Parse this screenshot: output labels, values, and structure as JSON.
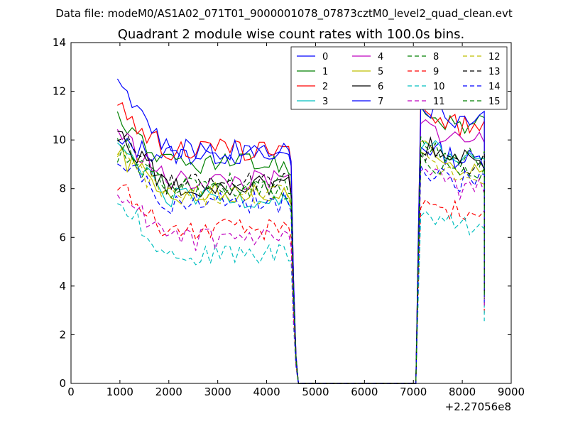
{
  "chart_data": {
    "type": "line",
    "suptitle": "Data file: modeM0/AS1A02_071T01_9000001078_07873cztM0_level2_quad_clean.evt",
    "title": "Quadrant 2 module wise count rates with 100.0s bins.",
    "xlabel": "",
    "ylabel": "",
    "offset_label": "+2.27056e8",
    "xlim": [
      0,
      9000
    ],
    "ylim": [
      0,
      14
    ],
    "xticks": [
      0,
      1000,
      2000,
      3000,
      4000,
      5000,
      6000,
      7000,
      8000,
      9000
    ],
    "yticks": [
      0,
      2,
      4,
      6,
      8,
      10,
      12,
      14
    ],
    "legend": {
      "placement": "top-right",
      "columns": 4
    },
    "series": [
      {
        "name": "0",
        "color": "#0000ff",
        "style": "solid",
        "base1": 9.4,
        "base2": 9.2,
        "start": 9.8
      },
      {
        "name": "1",
        "color": "#008000",
        "style": "solid",
        "base1": 9.0,
        "base2": 10.6,
        "start": 11.0
      },
      {
        "name": "2",
        "color": "#ff0000",
        "style": "solid",
        "base1": 9.6,
        "base2": 10.6,
        "start": 11.3
      },
      {
        "name": "3",
        "color": "#00bfbf",
        "style": "solid",
        "base1": 7.6,
        "base2": 9.2,
        "start": 9.8
      },
      {
        "name": "4",
        "color": "#bf00bf",
        "style": "solid",
        "base1": 8.3,
        "base2": 10.0,
        "start": 10.4
      },
      {
        "name": "5",
        "color": "#bfbf00",
        "style": "solid",
        "base1": 7.8,
        "base2": 9.0,
        "start": 9.4
      },
      {
        "name": "6",
        "color": "#000000",
        "style": "solid",
        "base1": 8.1,
        "base2": 9.2,
        "start": 10.4
      },
      {
        "name": "7",
        "color": "#0000ff",
        "style": "solid",
        "base1": 9.6,
        "base2": 10.8,
        "start": 12.6
      },
      {
        "name": "8",
        "color": "#008000",
        "style": "dashed",
        "base1": 8.2,
        "base2": 9.3,
        "start": 10.2
      },
      {
        "name": "9",
        "color": "#ff0000",
        "style": "dashed",
        "base1": 6.3,
        "base2": 7.0,
        "start": 8.1
      },
      {
        "name": "10",
        "color": "#00bfbf",
        "style": "dashed",
        "base1": 5.3,
        "base2": 6.4,
        "start": 7.6
      },
      {
        "name": "11",
        "color": "#bf00bf",
        "style": "dashed",
        "base1": 5.9,
        "base2": 8.0,
        "start": 8.0
      },
      {
        "name": "12",
        "color": "#bfbf00",
        "style": "dashed",
        "base1": 7.7,
        "base2": 8.5,
        "start": 9.6
      },
      {
        "name": "13",
        "color": "#000000",
        "style": "dashed",
        "base1": 8.2,
        "base2": 9.0,
        "start": 10.3
      },
      {
        "name": "14",
        "color": "#0000ff",
        "style": "dashed",
        "base1": 7.4,
        "base2": 8.3,
        "start": 9.4
      },
      {
        "name": "15",
        "color": "#008000",
        "style": "dashed",
        "base1": 8.0,
        "base2": 8.7,
        "start": 9.5
      }
    ],
    "segments": {
      "x_start": 950,
      "x_step": 100,
      "high1_end": 4450,
      "drop_x": [
        4500,
        4550,
        4600,
        4650
      ],
      "drop_frac": [
        0.95,
        0.45,
        0.12,
        0.0
      ],
      "zero_end": 7050,
      "rise_x": 7100,
      "high2_start": 7150,
      "high2_end": 8400,
      "tail_x": [
        8450
      ],
      "tail_frac": [
        0.4
      ]
    }
  }
}
